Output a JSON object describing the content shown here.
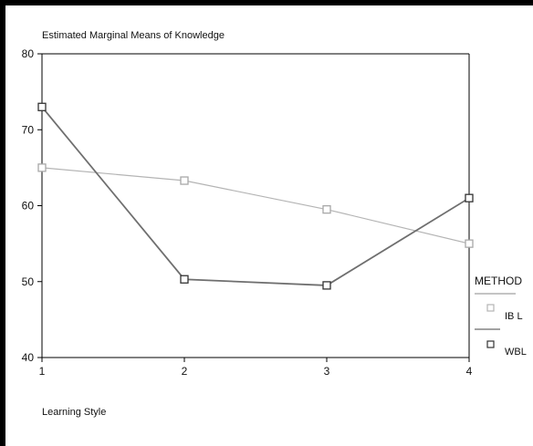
{
  "chart_data": {
    "type": "line",
    "title": "Estimated Marginal Means of Knowledge",
    "xlabel": "Learning Style",
    "ylabel": "",
    "x": [
      1,
      2,
      3,
      4
    ],
    "x_tick_labels": [
      "1",
      "2",
      "3",
      "4"
    ],
    "ylim": [
      40,
      80
    ],
    "y_ticks": [
      40,
      50,
      60,
      70,
      80
    ],
    "y_tick_labels": [
      "40",
      "50",
      "60",
      "70",
      "80"
    ],
    "grid": false,
    "legend": {
      "title": "METHOD",
      "placement": "right"
    },
    "series": [
      {
        "name": "IB L",
        "values": [
          65.0,
          63.3,
          59.5,
          55.0
        ],
        "color": "#b4b4b4",
        "marker": "square-open"
      },
      {
        "name": "WBL",
        "values": [
          73.0,
          50.3,
          49.5,
          61.0
        ],
        "color": "#6f6f6f",
        "marker": "square-open"
      }
    ]
  }
}
